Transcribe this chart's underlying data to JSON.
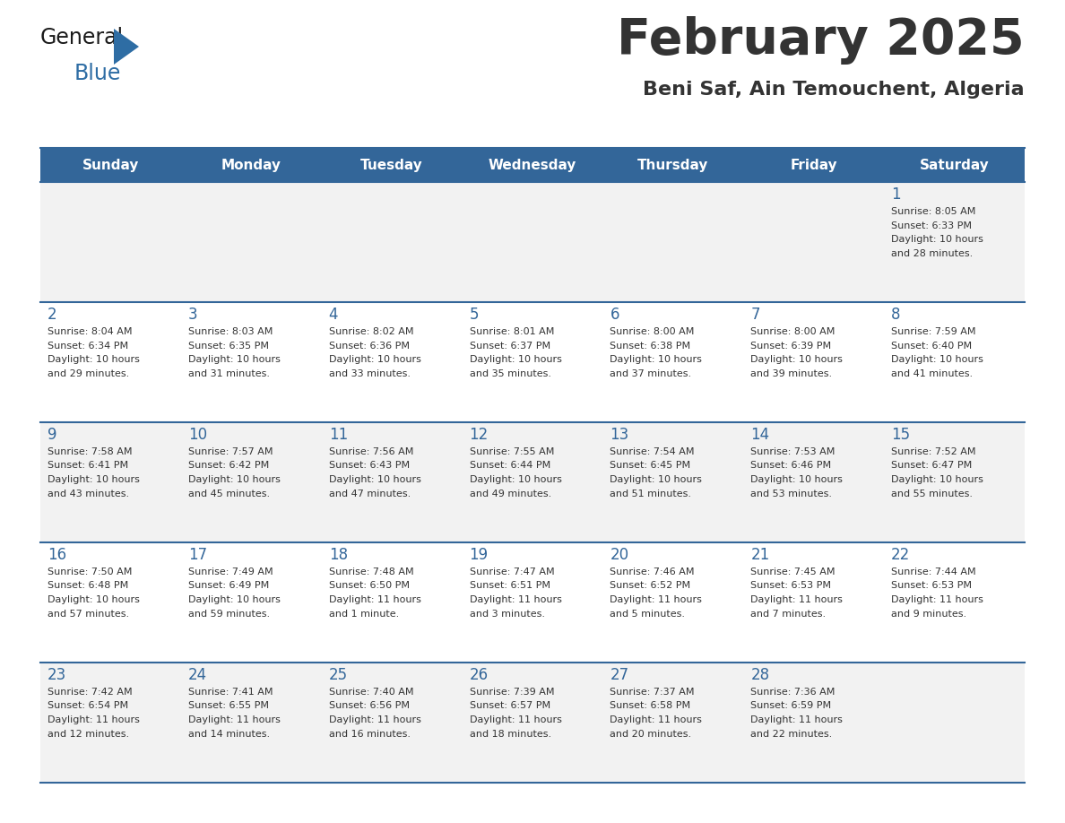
{
  "title": "February 2025",
  "subtitle": "Beni Saf, Ain Temouchent, Algeria",
  "header_bg": "#336699",
  "header_text_color": "#FFFFFF",
  "cell_bg_odd": "#F2F2F2",
  "cell_bg_even": "#FFFFFF",
  "day_number_color": "#336699",
  "text_color": "#333333",
  "line_color": "#336699",
  "days_of_week": [
    "Sunday",
    "Monday",
    "Tuesday",
    "Wednesday",
    "Thursday",
    "Friday",
    "Saturday"
  ],
  "weeks": [
    [
      {
        "day": null,
        "sunrise": null,
        "sunset": null,
        "daylight": null
      },
      {
        "day": null,
        "sunrise": null,
        "sunset": null,
        "daylight": null
      },
      {
        "day": null,
        "sunrise": null,
        "sunset": null,
        "daylight": null
      },
      {
        "day": null,
        "sunrise": null,
        "sunset": null,
        "daylight": null
      },
      {
        "day": null,
        "sunrise": null,
        "sunset": null,
        "daylight": null
      },
      {
        "day": null,
        "sunrise": null,
        "sunset": null,
        "daylight": null
      },
      {
        "day": 1,
        "sunrise": "8:05 AM",
        "sunset": "6:33 PM",
        "daylight": "10 hours and 28 minutes."
      }
    ],
    [
      {
        "day": 2,
        "sunrise": "8:04 AM",
        "sunset": "6:34 PM",
        "daylight": "10 hours and 29 minutes."
      },
      {
        "day": 3,
        "sunrise": "8:03 AM",
        "sunset": "6:35 PM",
        "daylight": "10 hours and 31 minutes."
      },
      {
        "day": 4,
        "sunrise": "8:02 AM",
        "sunset": "6:36 PM",
        "daylight": "10 hours and 33 minutes."
      },
      {
        "day": 5,
        "sunrise": "8:01 AM",
        "sunset": "6:37 PM",
        "daylight": "10 hours and 35 minutes."
      },
      {
        "day": 6,
        "sunrise": "8:00 AM",
        "sunset": "6:38 PM",
        "daylight": "10 hours and 37 minutes."
      },
      {
        "day": 7,
        "sunrise": "8:00 AM",
        "sunset": "6:39 PM",
        "daylight": "10 hours and 39 minutes."
      },
      {
        "day": 8,
        "sunrise": "7:59 AM",
        "sunset": "6:40 PM",
        "daylight": "10 hours and 41 minutes."
      }
    ],
    [
      {
        "day": 9,
        "sunrise": "7:58 AM",
        "sunset": "6:41 PM",
        "daylight": "10 hours and 43 minutes."
      },
      {
        "day": 10,
        "sunrise": "7:57 AM",
        "sunset": "6:42 PM",
        "daylight": "10 hours and 45 minutes."
      },
      {
        "day": 11,
        "sunrise": "7:56 AM",
        "sunset": "6:43 PM",
        "daylight": "10 hours and 47 minutes."
      },
      {
        "day": 12,
        "sunrise": "7:55 AM",
        "sunset": "6:44 PM",
        "daylight": "10 hours and 49 minutes."
      },
      {
        "day": 13,
        "sunrise": "7:54 AM",
        "sunset": "6:45 PM",
        "daylight": "10 hours and 51 minutes."
      },
      {
        "day": 14,
        "sunrise": "7:53 AM",
        "sunset": "6:46 PM",
        "daylight": "10 hours and 53 minutes."
      },
      {
        "day": 15,
        "sunrise": "7:52 AM",
        "sunset": "6:47 PM",
        "daylight": "10 hours and 55 minutes."
      }
    ],
    [
      {
        "day": 16,
        "sunrise": "7:50 AM",
        "sunset": "6:48 PM",
        "daylight": "10 hours and 57 minutes."
      },
      {
        "day": 17,
        "sunrise": "7:49 AM",
        "sunset": "6:49 PM",
        "daylight": "10 hours and 59 minutes."
      },
      {
        "day": 18,
        "sunrise": "7:48 AM",
        "sunset": "6:50 PM",
        "daylight": "11 hours and 1 minute."
      },
      {
        "day": 19,
        "sunrise": "7:47 AM",
        "sunset": "6:51 PM",
        "daylight": "11 hours and 3 minutes."
      },
      {
        "day": 20,
        "sunrise": "7:46 AM",
        "sunset": "6:52 PM",
        "daylight": "11 hours and 5 minutes."
      },
      {
        "day": 21,
        "sunrise": "7:45 AM",
        "sunset": "6:53 PM",
        "daylight": "11 hours and 7 minutes."
      },
      {
        "day": 22,
        "sunrise": "7:44 AM",
        "sunset": "6:53 PM",
        "daylight": "11 hours and 9 minutes."
      }
    ],
    [
      {
        "day": 23,
        "sunrise": "7:42 AM",
        "sunset": "6:54 PM",
        "daylight": "11 hours and 12 minutes."
      },
      {
        "day": 24,
        "sunrise": "7:41 AM",
        "sunset": "6:55 PM",
        "daylight": "11 hours and 14 minutes."
      },
      {
        "day": 25,
        "sunrise": "7:40 AM",
        "sunset": "6:56 PM",
        "daylight": "11 hours and 16 minutes."
      },
      {
        "day": 26,
        "sunrise": "7:39 AM",
        "sunset": "6:57 PM",
        "daylight": "11 hours and 18 minutes."
      },
      {
        "day": 27,
        "sunrise": "7:37 AM",
        "sunset": "6:58 PM",
        "daylight": "11 hours and 20 minutes."
      },
      {
        "day": 28,
        "sunrise": "7:36 AM",
        "sunset": "6:59 PM",
        "daylight": "11 hours and 22 minutes."
      },
      {
        "day": null,
        "sunrise": null,
        "sunset": null,
        "daylight": null
      }
    ]
  ],
  "logo_general_color": "#1a1a1a",
  "logo_blue_color": "#2E6DA4",
  "logo_triangle_color": "#2E6DA4"
}
